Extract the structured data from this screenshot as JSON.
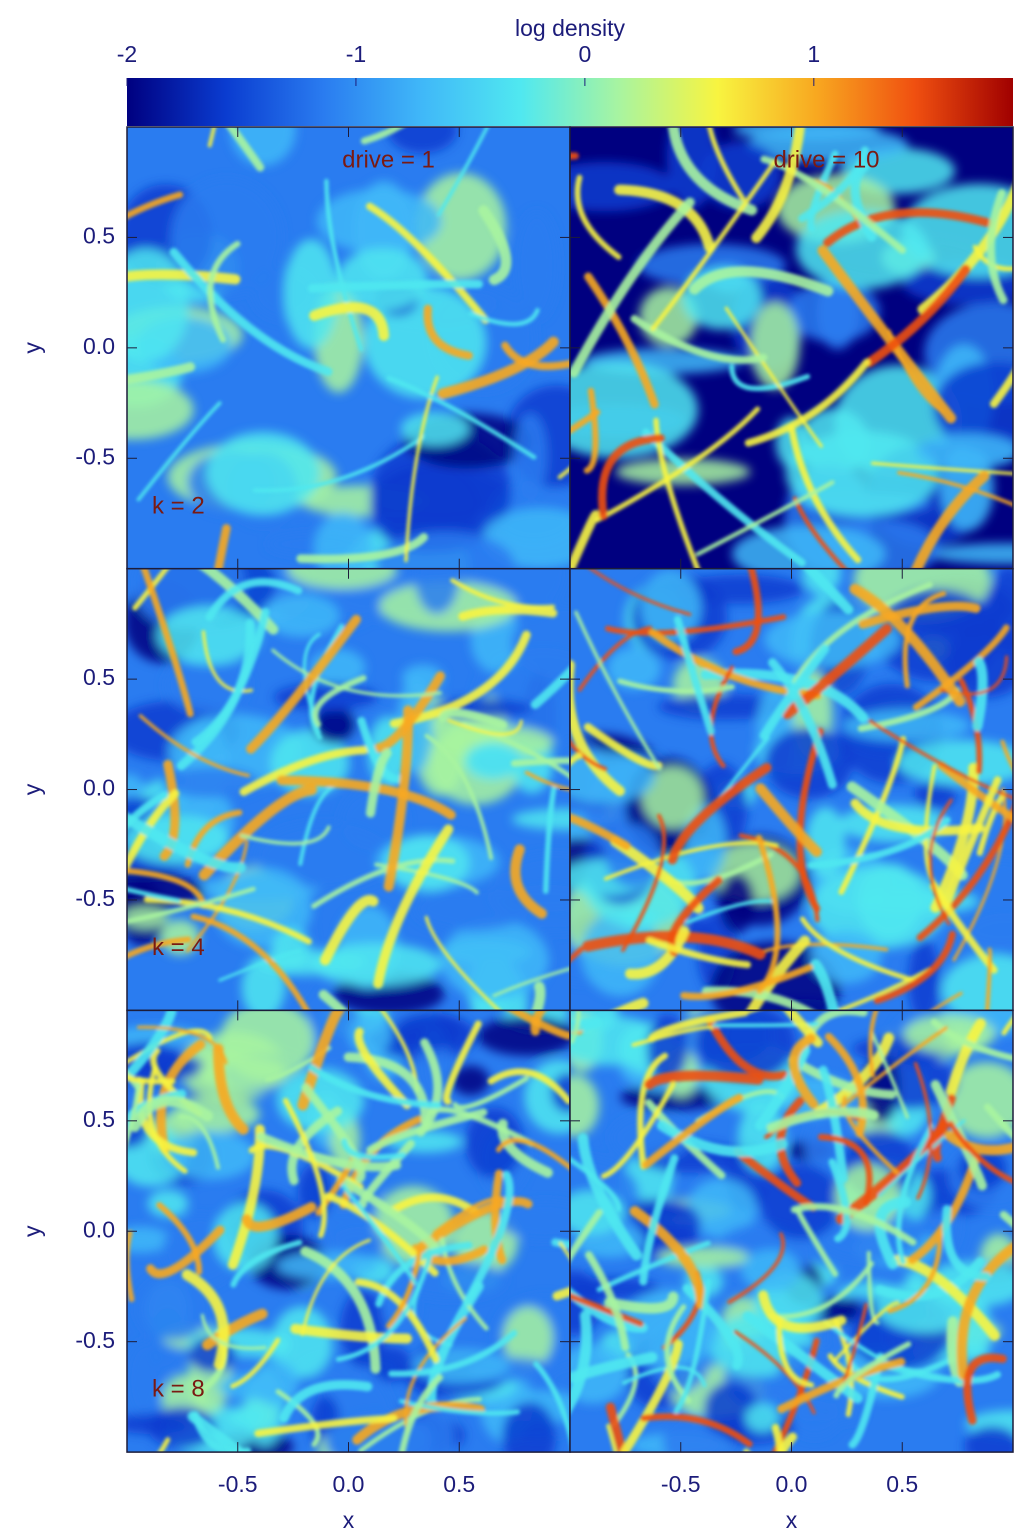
{
  "chart_data": {
    "type": "heatmap",
    "colorbar_label": "log density",
    "clim": [
      -2,
      1.87
    ],
    "cticks": [
      -2,
      -1,
      0,
      1
    ],
    "colors": [
      "#000080",
      "#0a3cd0",
      "#2a7cf0",
      "#40b8f8",
      "#50e8f0",
      "#a8f4a0",
      "#f8f440",
      "#f8a820",
      "#f05010",
      "#a00000"
    ],
    "columns": [
      "drive = 1",
      "drive = 10"
    ],
    "rows": [
      "k = 2",
      "k = 4",
      "k = 8"
    ],
    "xlabel": "x",
    "ylabel": "y",
    "xlim": [
      -1,
      1
    ],
    "ylim": [
      -1,
      1
    ],
    "xticks": [
      -0.5,
      {
        "value": 0,
        "label": "0.0"
      },
      0.5
    ],
    "yticks": [
      -0.5,
      {
        "value": 0,
        "label": "0.0"
      },
      0.5
    ]
  }
}
